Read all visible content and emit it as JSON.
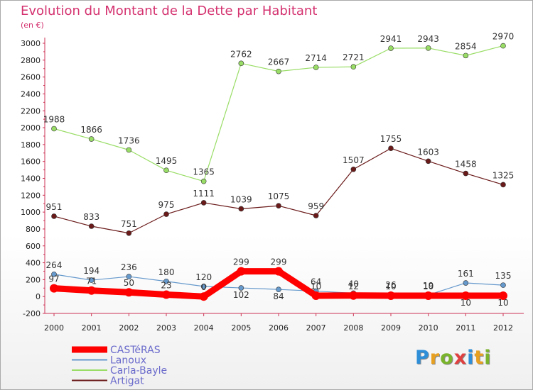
{
  "title": "Evolution du Montant de la Dette par Habitant",
  "unit": "(en €)",
  "brand": {
    "letters": [
      "P",
      "r",
      "o",
      "x",
      "i",
      "t",
      "i"
    ],
    "colors": [
      "#2e8fd8",
      "#e8a020",
      "#7ab42c",
      "#e04040",
      "#2e8fd8",
      "#e8a020",
      "#7ab42c"
    ]
  },
  "chart_data": {
    "type": "line",
    "title": "Evolution du Montant de la Dette par Habitant",
    "ylabel": "(en €)",
    "xlabel": "",
    "x": [
      "2000",
      "2001",
      "2002",
      "2003",
      "2004",
      "2005",
      "2006",
      "2007",
      "2008",
      "2009",
      "2010",
      "2011",
      "2012"
    ],
    "ylim": [
      -200,
      3000
    ],
    "yticks": [
      "-200",
      "0",
      "200",
      "400",
      "600",
      "800",
      "1000",
      "1200",
      "1400",
      "1600",
      "1800",
      "2000",
      "2200",
      "2400",
      "2600",
      "2800",
      "3000"
    ],
    "grid": false,
    "legend_position": "bottom-left",
    "series": [
      {
        "name": "CASTéRAS",
        "color": "#ff0000",
        "values": [
          97,
          71,
          50,
          23,
          0,
          299,
          299,
          10,
          12,
          10,
          10,
          10,
          10
        ],
        "labels": [
          "97",
          "71",
          "50",
          "23",
          "0",
          "299",
          "299",
          "10",
          "12",
          "10",
          "10",
          "10",
          "10"
        ],
        "label_positions": [
          "above",
          "above",
          "above",
          "above",
          "above",
          "above",
          "above",
          "above",
          "above",
          "above",
          "above",
          "below",
          "below"
        ]
      },
      {
        "name": "Lanoux",
        "color": "#6699cc",
        "values": [
          264,
          194,
          236,
          180,
          120,
          102,
          84,
          64,
          40,
          26,
          19,
          161,
          135
        ],
        "labels": [
          "264",
          "194",
          "236",
          "180",
          "120",
          "102",
          "84",
          "64",
          "40",
          "26",
          "19",
          "161",
          "135"
        ],
        "label_positions": [
          "above",
          "above",
          "above",
          "above",
          "above",
          "below",
          "below",
          "above",
          "above",
          "above",
          "above",
          "above",
          "above"
        ]
      },
      {
        "name": "Carla-Bayle",
        "color": "#99dd66",
        "values": [
          1988,
          1866,
          1736,
          1495,
          1365,
          2762,
          2667,
          2714,
          2721,
          2941,
          2943,
          2854,
          2970
        ],
        "labels": [
          "1988",
          "1866",
          "1736",
          "1495",
          "1365",
          "2762",
          "2667",
          "2714",
          "2721",
          "2941",
          "2943",
          "2854",
          "2970"
        ],
        "label_positions": [
          "above",
          "above",
          "above",
          "above",
          "above",
          "above",
          "above",
          "above",
          "above",
          "above",
          "above",
          "above",
          "above"
        ]
      },
      {
        "name": "Artigat",
        "color": "#6b1a1a",
        "values": [
          951,
          833,
          751,
          975,
          1111,
          1039,
          1075,
          959,
          1507,
          1755,
          1603,
          1458,
          1325
        ],
        "labels": [
          "951",
          "833",
          "751",
          "975",
          "1111",
          "1039",
          "1075",
          "959",
          "1507",
          "1755",
          "1603",
          "1458",
          "1325"
        ],
        "label_positions": [
          "above",
          "above",
          "above",
          "above",
          "above",
          "above",
          "above",
          "above",
          "above",
          "above",
          "above",
          "above",
          "above"
        ]
      }
    ]
  }
}
